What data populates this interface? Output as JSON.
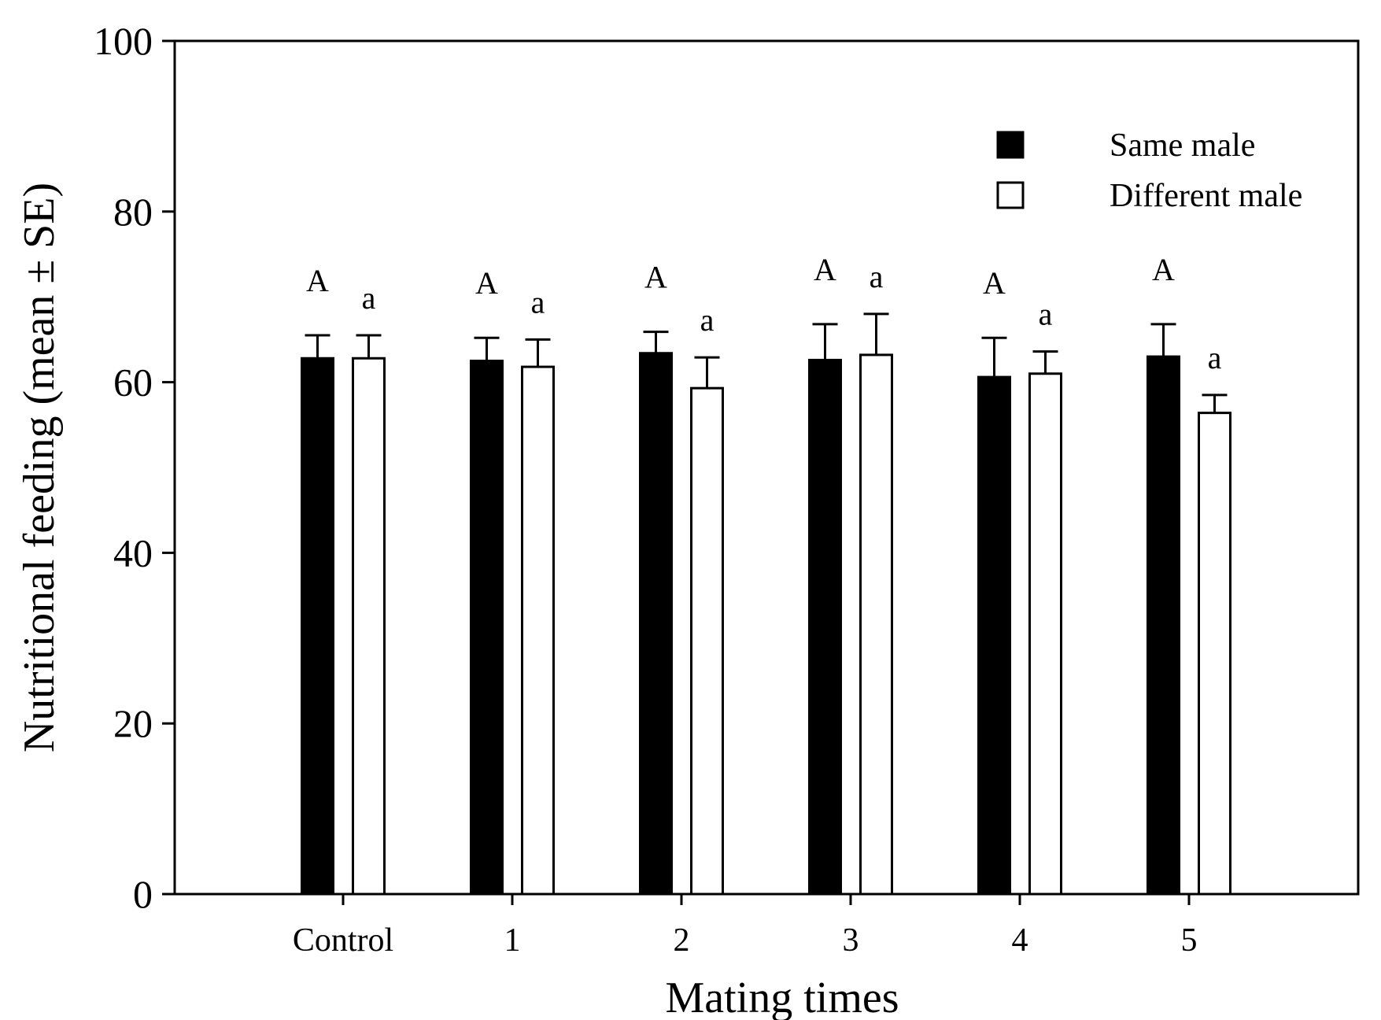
{
  "chart_data": {
    "type": "bar",
    "title": "",
    "xlabel": "Mating times",
    "ylabel": "Nutritional feeding (mean ± SE)",
    "ylim": [
      0,
      100
    ],
    "yticks": [
      0,
      20,
      40,
      60,
      80,
      100
    ],
    "categories": [
      "Control",
      "1",
      "2",
      "3",
      "4",
      "5"
    ],
    "legend_position": "top-right",
    "series": [
      {
        "name": "Same male",
        "fill": "#000000",
        "values": [
          62.8,
          62.5,
          63.4,
          62.6,
          60.6,
          63.0
        ],
        "errors": [
          2.7,
          2.7,
          2.5,
          4.2,
          4.6,
          3.8
        ],
        "letters": [
          "A",
          "A",
          "A",
          "A",
          "A",
          "A"
        ]
      },
      {
        "name": "Different male",
        "fill": "#ffffff",
        "values": [
          62.8,
          61.8,
          59.3,
          63.2,
          61.0,
          56.4
        ],
        "errors": [
          2.7,
          3.2,
          3.6,
          4.8,
          2.6,
          2.1
        ],
        "letters": [
          "a",
          "a",
          "a",
          "a",
          "a",
          "a"
        ]
      }
    ]
  }
}
